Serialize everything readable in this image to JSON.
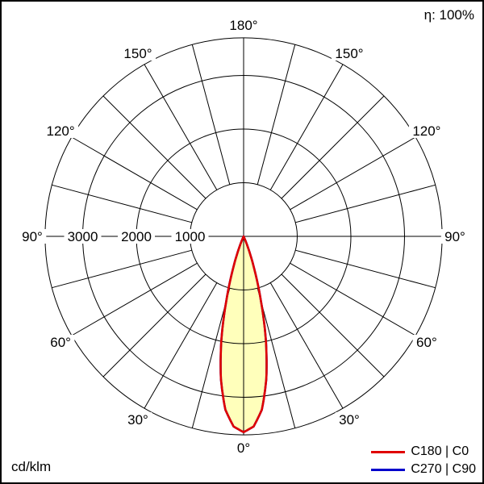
{
  "header": {
    "efficiency_label": "η: 100%"
  },
  "footer": {
    "unit_label": "cd/klm"
  },
  "legend": {
    "items": [
      {
        "label": "C180 | C0",
        "color": "#e00000"
      },
      {
        "label": "C270 | C90",
        "color": "#0000cc"
      }
    ]
  },
  "chart_data": {
    "type": "polar",
    "unit": "cd/klm",
    "efficiency": "η: 100%",
    "ring_step": 1000,
    "ring_values": [
      1000,
      2000,
      3000
    ],
    "ring_label_texts": [
      "3000",
      "2000",
      "1000"
    ],
    "r_max": 3700,
    "angle_step_deg": 15,
    "angle_labels": [
      {
        "gamma": 0,
        "text": "0°"
      },
      {
        "gamma": 30,
        "text": "30°"
      },
      {
        "gamma": 60,
        "text": "60°"
      },
      {
        "gamma": 90,
        "text": "90°"
      },
      {
        "gamma": 120,
        "text": "120°"
      },
      {
        "gamma": 150,
        "text": "150°"
      },
      {
        "gamma": 180,
        "text": "180°"
      }
    ],
    "series": [
      {
        "key": "c180_c0",
        "name": "C180 | C0",
        "color": "#e00000",
        "fill": "#ffffbb",
        "points": [
          {
            "gamma": 0,
            "value": 3650
          },
          {
            "gamma": 3,
            "value": 3550
          },
          {
            "gamma": 6,
            "value": 3250
          },
          {
            "gamma": 9,
            "value": 2700
          },
          {
            "gamma": 12,
            "value": 2000
          },
          {
            "gamma": 15,
            "value": 1250
          },
          {
            "gamma": 18,
            "value": 650
          },
          {
            "gamma": 21,
            "value": 250
          },
          {
            "gamma": 24,
            "value": 0
          }
        ]
      },
      {
        "key": "c270_c90",
        "name": "C270 | C90",
        "color": "#0000cc",
        "points": [
          {
            "gamma": 0,
            "value": 3650
          },
          {
            "gamma": 3,
            "value": 3550
          },
          {
            "gamma": 6,
            "value": 3250
          },
          {
            "gamma": 9,
            "value": 2700
          },
          {
            "gamma": 12,
            "value": 2000
          },
          {
            "gamma": 15,
            "value": 1250
          },
          {
            "gamma": 18,
            "value": 650
          },
          {
            "gamma": 21,
            "value": 250
          },
          {
            "gamma": 24,
            "value": 0
          }
        ]
      }
    ]
  }
}
